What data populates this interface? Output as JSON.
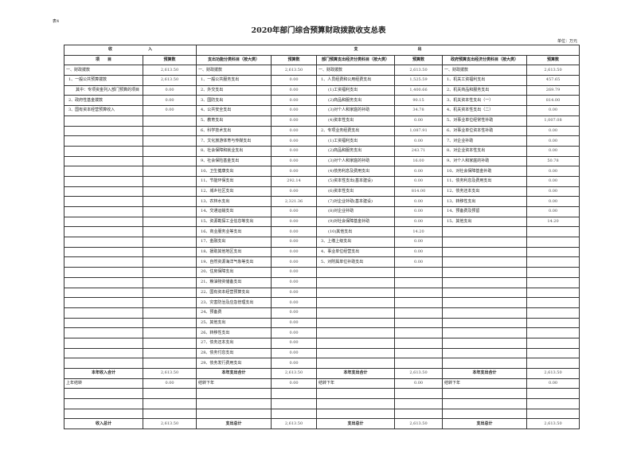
{
  "doc": {
    "tag": "表4",
    "title": "2020年部门综合预算财政拨款收支总表",
    "unit": "单位：万元"
  },
  "header": {
    "income_group": "收　　　　　　　　　入",
    "expense_group": "支　　　　　　　　　　　　　　　出",
    "col_item": "项　　目",
    "col_budget": "预算数",
    "col_func": "支出功能分类科目（按大类）",
    "col_dept_econ": "部门预算支出经济分类科目（按大类）",
    "col_gov_econ": "政府预算支出经济分类科目（按大类）"
  },
  "income": [
    {
      "label": "一、财政拨款",
      "value": "2,613.50"
    },
    {
      "label": "1、一般公共预算拨款",
      "value": "2,613.50"
    },
    {
      "label": "其中：专项资金列入部门预算的项目",
      "value": "0.00"
    },
    {
      "label": "2、政府性基金拨款",
      "value": "0.00"
    },
    {
      "label": "3、国有资本经营预算收入",
      "value": "0.00"
    }
  ],
  "func": [
    {
      "label": "一、财政拨款",
      "value": "2,613.50"
    },
    {
      "label": "1、一般公共服务支出",
      "value": "0.00"
    },
    {
      "label": "2、外交支出",
      "value": "0.00"
    },
    {
      "label": "3、国防支出",
      "value": "0.00"
    },
    {
      "label": "4、公共安全支出",
      "value": "0.00"
    },
    {
      "label": "5、教育支出",
      "value": "0.00"
    },
    {
      "label": "6、科学技术支出",
      "value": "0.00"
    },
    {
      "label": "7、文化旅游体育与传媒支出",
      "value": "0.00"
    },
    {
      "label": "8、社会保障和就业支出",
      "value": "0.00"
    },
    {
      "label": "9、社会保险基金支出",
      "value": "0.00"
    },
    {
      "label": "10、卫生健康支出",
      "value": "0.00"
    },
    {
      "label": "11、节能环保支出",
      "value": "292.14"
    },
    {
      "label": "12、城乡社区支出",
      "value": "0.00"
    },
    {
      "label": "13、农林水支出",
      "value": "2,321.36"
    },
    {
      "label": "14、交通运输支出",
      "value": "0.00"
    },
    {
      "label": "15、资源勘探工业信息等支出",
      "value": "0.00"
    },
    {
      "label": "16、商业服务业等支出",
      "value": "0.00"
    },
    {
      "label": "17、金融支出",
      "value": "0.00"
    },
    {
      "label": "18、援助其他地区支出",
      "value": "0.00"
    },
    {
      "label": "19、自然资源海洋气象等支出",
      "value": "0.00"
    },
    {
      "label": "20、住房保障支出",
      "value": "0.00"
    },
    {
      "label": "21、粮油物资储备支出",
      "value": "0.00"
    },
    {
      "label": "22、国有资本经营预算支出",
      "value": "0.00"
    },
    {
      "label": "23、灾害防治及应急管理支出",
      "value": "0.00"
    },
    {
      "label": "24、预备费",
      "value": "0.00"
    },
    {
      "label": "25、其他支出",
      "value": "0.00"
    },
    {
      "label": "26、转移性支出",
      "value": "0.00"
    },
    {
      "label": "27、债务还本支出",
      "value": "0.00"
    },
    {
      "label": "28、债务付息支出",
      "value": "0.00"
    },
    {
      "label": "29、债务发行费用支出",
      "value": "0.00"
    }
  ],
  "dept_econ": [
    {
      "label": "一、财政拨款",
      "value": "2,613.50"
    },
    {
      "label": "1、人员经费和公用经费支出",
      "value": "1,525.59"
    },
    {
      "label": "(1)工资福利支出",
      "value": "1,400.66"
    },
    {
      "label": "(2)商品和服务支出",
      "value": "90.15"
    },
    {
      "label": "(3)对个人和家庭的补助",
      "value": "34.78"
    },
    {
      "label": "(4)资本性支出",
      "value": "0.00"
    },
    {
      "label": "2、专项业务经费支出",
      "value": "1,087.91"
    },
    {
      "label": "(1)工资福利支出",
      "value": "0.00"
    },
    {
      "label": "(2)商品和服务支出",
      "value": "243.71"
    },
    {
      "label": "(3)对个人和家庭的补助",
      "value": "16.00"
    },
    {
      "label": "(4)债务利息及费用支出",
      "value": "0.00"
    },
    {
      "label": "(5)资本性支出(基本建设)",
      "value": "0.00"
    },
    {
      "label": "(6)资本性支出",
      "value": "814.00"
    },
    {
      "label": "(7)对企业补助(基本建设)",
      "value": "0.00"
    },
    {
      "label": "(8)对企业补助",
      "value": "0.00"
    },
    {
      "label": "(9)对社会保障基金补助",
      "value": "0.00"
    },
    {
      "label": "(10)其他支出",
      "value": "14.20"
    },
    {
      "label": "3、上缴上级支出",
      "value": "0.00"
    },
    {
      "label": "4、事业单位经营支出",
      "value": "0.00"
    },
    {
      "label": "5、对附属单位补助支出",
      "value": "0.00"
    }
  ],
  "gov_econ": [
    {
      "label": "一、财政拨款",
      "value": "2,613.50"
    },
    {
      "label": "1、机关工资福利支出",
      "value": "457.65"
    },
    {
      "label": "2、机关商品和服务支出",
      "value": "269.79"
    },
    {
      "label": "3、机关资本性支出（一）",
      "value": "814.00"
    },
    {
      "label": "4、机关资本性支出（二）",
      "value": "0.00"
    },
    {
      "label": "5、对事业单位经常性补助",
      "value": "1,007.08"
    },
    {
      "label": "6、对事业单位资本性补助",
      "value": "0.00"
    },
    {
      "label": "7、对企业补助",
      "value": "0.00"
    },
    {
      "label": "8、对企业资本性支出",
      "value": "0.00"
    },
    {
      "label": "9、对个人和家庭的补助",
      "value": "50.78"
    },
    {
      "label": "10、对社会保障基金补助",
      "value": "0.00"
    },
    {
      "label": "11、债务利息及费用支出",
      "value": "0.00"
    },
    {
      "label": "12、债务还本支出",
      "value": "0.00"
    },
    {
      "label": "13、转移性支出",
      "value": "0.00"
    },
    {
      "label": "14、预备费及预留",
      "value": "0.00"
    },
    {
      "label": "15、其他支出",
      "value": "14.20"
    }
  ],
  "totals": {
    "income_year_label": "本年收入合计",
    "income_year": "2,613.50",
    "expense_year_label": "本年支出合计",
    "expense_year": "2,613.50",
    "carry_in_label": "上年结转",
    "carry_in": "0.00",
    "carry_out_label": "结转下年",
    "carry_out": "0.00",
    "income_total_label": "收入总计",
    "income_total": "2,613.50",
    "expense_total_label": "支出总计",
    "expense_total": "2,613.50"
  }
}
